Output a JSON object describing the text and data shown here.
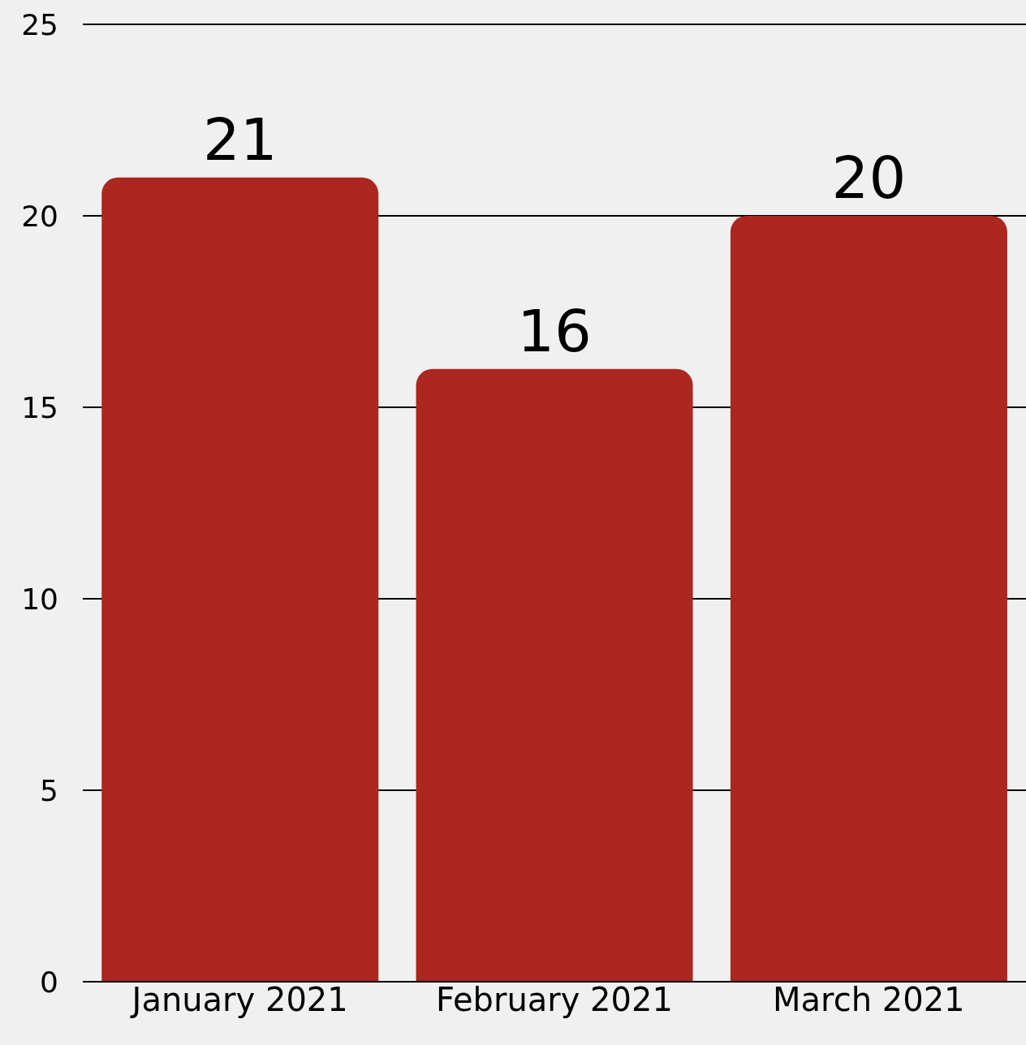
{
  "chart_data": {
    "type": "bar",
    "categories": [
      "January 2021",
      "February 2021",
      "March 2021"
    ],
    "values": [
      21,
      16,
      20
    ],
    "color": "#ab2720",
    "ylim": [
      0,
      25
    ],
    "yticks": [
      0,
      5,
      10,
      15,
      20,
      25
    ],
    "grid": "y",
    "data_labels": true
  }
}
